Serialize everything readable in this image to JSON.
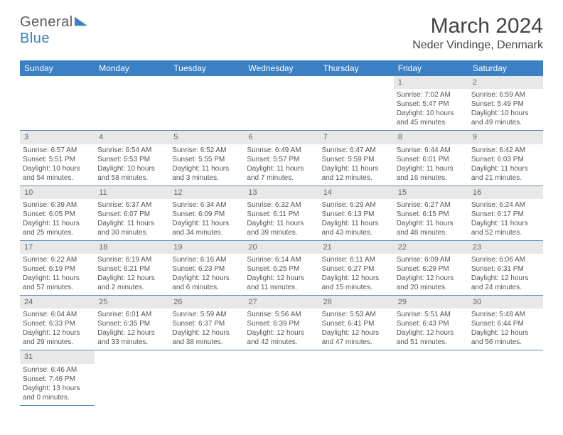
{
  "logo": {
    "text1": "General",
    "text2": "Blue"
  },
  "title": "March 2024",
  "location": "Neder Vindinge, Denmark",
  "header_bg": "#3b7fc4",
  "border_color": "#5a8fc4",
  "daynum_bg": "#e8e8e8",
  "weekdays": [
    "Sunday",
    "Monday",
    "Tuesday",
    "Wednesday",
    "Thursday",
    "Friday",
    "Saturday"
  ],
  "weeks": [
    [
      null,
      null,
      null,
      null,
      null,
      {
        "n": "1",
        "sr": "7:02 AM",
        "ss": "5:47 PM",
        "dl": "10 hours and 45 minutes."
      },
      {
        "n": "2",
        "sr": "6:59 AM",
        "ss": "5:49 PM",
        "dl": "10 hours and 49 minutes."
      }
    ],
    [
      {
        "n": "3",
        "sr": "6:57 AM",
        "ss": "5:51 PM",
        "dl": "10 hours and 54 minutes."
      },
      {
        "n": "4",
        "sr": "6:54 AM",
        "ss": "5:53 PM",
        "dl": "10 hours and 58 minutes."
      },
      {
        "n": "5",
        "sr": "6:52 AM",
        "ss": "5:55 PM",
        "dl": "11 hours and 3 minutes."
      },
      {
        "n": "6",
        "sr": "6:49 AM",
        "ss": "5:57 PM",
        "dl": "11 hours and 7 minutes."
      },
      {
        "n": "7",
        "sr": "6:47 AM",
        "ss": "5:59 PM",
        "dl": "11 hours and 12 minutes."
      },
      {
        "n": "8",
        "sr": "6:44 AM",
        "ss": "6:01 PM",
        "dl": "11 hours and 16 minutes."
      },
      {
        "n": "9",
        "sr": "6:42 AM",
        "ss": "6:03 PM",
        "dl": "11 hours and 21 minutes."
      }
    ],
    [
      {
        "n": "10",
        "sr": "6:39 AM",
        "ss": "6:05 PM",
        "dl": "11 hours and 25 minutes."
      },
      {
        "n": "11",
        "sr": "6:37 AM",
        "ss": "6:07 PM",
        "dl": "11 hours and 30 minutes."
      },
      {
        "n": "12",
        "sr": "6:34 AM",
        "ss": "6:09 PM",
        "dl": "11 hours and 34 minutes."
      },
      {
        "n": "13",
        "sr": "6:32 AM",
        "ss": "6:11 PM",
        "dl": "11 hours and 39 minutes."
      },
      {
        "n": "14",
        "sr": "6:29 AM",
        "ss": "6:13 PM",
        "dl": "11 hours and 43 minutes."
      },
      {
        "n": "15",
        "sr": "6:27 AM",
        "ss": "6:15 PM",
        "dl": "11 hours and 48 minutes."
      },
      {
        "n": "16",
        "sr": "6:24 AM",
        "ss": "6:17 PM",
        "dl": "11 hours and 52 minutes."
      }
    ],
    [
      {
        "n": "17",
        "sr": "6:22 AM",
        "ss": "6:19 PM",
        "dl": "11 hours and 57 minutes."
      },
      {
        "n": "18",
        "sr": "6:19 AM",
        "ss": "6:21 PM",
        "dl": "12 hours and 2 minutes."
      },
      {
        "n": "19",
        "sr": "6:16 AM",
        "ss": "6:23 PM",
        "dl": "12 hours and 6 minutes."
      },
      {
        "n": "20",
        "sr": "6:14 AM",
        "ss": "6:25 PM",
        "dl": "12 hours and 11 minutes."
      },
      {
        "n": "21",
        "sr": "6:11 AM",
        "ss": "6:27 PM",
        "dl": "12 hours and 15 minutes."
      },
      {
        "n": "22",
        "sr": "6:09 AM",
        "ss": "6:29 PM",
        "dl": "12 hours and 20 minutes."
      },
      {
        "n": "23",
        "sr": "6:06 AM",
        "ss": "6:31 PM",
        "dl": "12 hours and 24 minutes."
      }
    ],
    [
      {
        "n": "24",
        "sr": "6:04 AM",
        "ss": "6:33 PM",
        "dl": "12 hours and 29 minutes."
      },
      {
        "n": "25",
        "sr": "6:01 AM",
        "ss": "6:35 PM",
        "dl": "12 hours and 33 minutes."
      },
      {
        "n": "26",
        "sr": "5:59 AM",
        "ss": "6:37 PM",
        "dl": "12 hours and 38 minutes."
      },
      {
        "n": "27",
        "sr": "5:56 AM",
        "ss": "6:39 PM",
        "dl": "12 hours and 42 minutes."
      },
      {
        "n": "28",
        "sr": "5:53 AM",
        "ss": "6:41 PM",
        "dl": "12 hours and 47 minutes."
      },
      {
        "n": "29",
        "sr": "5:51 AM",
        "ss": "6:43 PM",
        "dl": "12 hours and 51 minutes."
      },
      {
        "n": "30",
        "sr": "5:48 AM",
        "ss": "6:44 PM",
        "dl": "12 hours and 56 minutes."
      }
    ],
    [
      {
        "n": "31",
        "sr": "6:46 AM",
        "ss": "7:46 PM",
        "dl": "13 hours and 0 minutes."
      },
      null,
      null,
      null,
      null,
      null,
      null
    ]
  ],
  "labels": {
    "sunrise": "Sunrise:",
    "sunset": "Sunset:",
    "daylight": "Daylight:"
  }
}
